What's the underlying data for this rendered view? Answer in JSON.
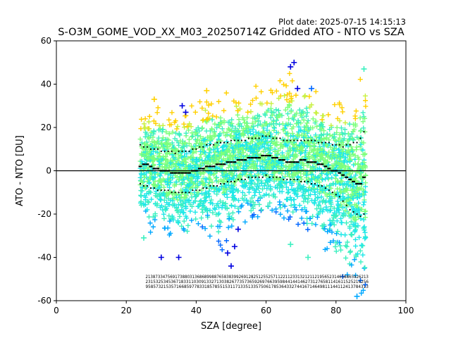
{
  "header": {
    "plot_date": "Plot date: 2025-07-15 14:15:13"
  },
  "chart_data": {
    "type": "scatter",
    "title": "S-O3M_GOME_VOD_XX_M03_20250714Z Gridded ATO - NTO vs SZA",
    "xlabel": "SZA [degree]",
    "ylabel": "ATO - NTO [DU]",
    "xlim": [
      0,
      100
    ],
    "ylim": [
      -60,
      60
    ],
    "xticks": [
      0,
      20,
      40,
      60,
      80,
      100
    ],
    "yticks": [
      -60,
      -40,
      -20,
      0,
      20,
      40,
      60
    ],
    "grid": false,
    "legend": "none",
    "reference_line": 0,
    "colormap": [
      "#0000e0",
      "#0066ff",
      "#00a8ff",
      "#1ee8e8",
      "#3cf0c0",
      "#7cff7c",
      "#c8f040",
      "#ffd000"
    ],
    "scatter_envelope": [
      {
        "sza": 24,
        "upper": 27,
        "lower": -28
      },
      {
        "sza": 30,
        "upper": 30,
        "lower": -32
      },
      {
        "sza": 36,
        "upper": 28,
        "lower": -38
      },
      {
        "sza": 42,
        "upper": 35,
        "lower": -28
      },
      {
        "sza": 48,
        "upper": 37,
        "lower": -38
      },
      {
        "sza": 54,
        "upper": 37,
        "lower": -25
      },
      {
        "sza": 60,
        "upper": 42,
        "lower": -22
      },
      {
        "sza": 66,
        "upper": 47,
        "lower": -25
      },
      {
        "sza": 72,
        "upper": 42,
        "lower": -30
      },
      {
        "sza": 78,
        "upper": 30,
        "lower": -38
      },
      {
        "sza": 84,
        "upper": 36,
        "lower": -55
      },
      {
        "sza": 88,
        "upper": 45,
        "lower": -58
      }
    ],
    "outliers": [
      {
        "sza": 36,
        "ato_nto": 30,
        "level": 0
      },
      {
        "sza": 37,
        "ato_nto": 27,
        "level": 0
      },
      {
        "sza": 30,
        "ato_nto": -40,
        "level": 0
      },
      {
        "sza": 35,
        "ato_nto": -40,
        "level": 0
      },
      {
        "sza": 49,
        "ato_nto": -38,
        "level": 0
      },
      {
        "sza": 50,
        "ato_nto": -44,
        "level": 0
      },
      {
        "sza": 51,
        "ato_nto": -35,
        "level": 0
      },
      {
        "sza": 52,
        "ato_nto": -27,
        "level": 0
      },
      {
        "sza": 67,
        "ato_nto": 48,
        "level": 0
      },
      {
        "sza": 68,
        "ato_nto": 50,
        "level": 0
      },
      {
        "sza": 69,
        "ato_nto": 38,
        "level": 0
      },
      {
        "sza": 73,
        "ato_nto": 38,
        "level": 1
      },
      {
        "sza": 88,
        "ato_nto": 47,
        "level": 4
      },
      {
        "sza": 67,
        "ato_nto": -34,
        "level": 4
      },
      {
        "sza": 72,
        "ato_nto": -40,
        "level": 4
      },
      {
        "sza": 25,
        "ato_nto": -31,
        "level": 4
      },
      {
        "sza": 43,
        "ato_nto": 37,
        "level": 7
      },
      {
        "sza": 28,
        "ato_nto": 33,
        "level": 7
      },
      {
        "sza": 86,
        "ato_nto": -58,
        "level": 2
      }
    ],
    "series": [
      {
        "x": [
          24,
          25,
          26,
          27,
          28,
          29,
          30,
          31,
          32,
          33,
          34,
          35,
          36,
          37,
          38,
          39,
          40,
          41,
          42,
          43,
          44,
          45,
          46,
          47,
          48,
          49,
          50,
          51,
          52,
          53,
          54,
          55,
          56,
          57,
          58,
          59,
          60,
          61,
          62,
          63,
          64,
          65,
          66,
          67,
          68,
          69,
          70,
          71,
          72,
          73,
          74,
          75,
          76,
          77,
          78,
          79,
          80,
          81,
          82,
          83,
          84,
          85,
          86,
          87,
          88
        ],
        "values": [
          2,
          3,
          3,
          2,
          1,
          1,
          0,
          0,
          0,
          -1,
          -1,
          -1,
          -1,
          -1,
          -1,
          0,
          0,
          1,
          1,
          2,
          2,
          2,
          3,
          3,
          3,
          4,
          4,
          4,
          5,
          5,
          5,
          6,
          6,
          6,
          6,
          7,
          7,
          7,
          6,
          6,
          5,
          5,
          4,
          4,
          4,
          4,
          5,
          5,
          4,
          4,
          4,
          3,
          3,
          2,
          1,
          0,
          0,
          -1,
          -2,
          -3,
          -4,
          -5,
          -6,
          -6,
          -3
        ]
      },
      {
        "x": [
          24,
          25,
          26,
          27,
          28,
          29,
          30,
          31,
          32,
          33,
          34,
          35,
          36,
          37,
          38,
          39,
          40,
          41,
          42,
          43,
          44,
          45,
          46,
          47,
          48,
          49,
          50,
          51,
          52,
          53,
          54,
          55,
          56,
          57,
          58,
          59,
          60,
          61,
          62,
          63,
          64,
          65,
          66,
          67,
          68,
          69,
          70,
          71,
          72,
          73,
          74,
          75,
          76,
          77,
          78,
          79,
          80,
          81,
          82,
          83,
          84,
          85,
          86,
          87,
          88
        ],
        "values": [
          12,
          11,
          11,
          10,
          10,
          10,
          9,
          9,
          9,
          9,
          8,
          9,
          9,
          9,
          9,
          10,
          10,
          11,
          11,
          12,
          12,
          12,
          13,
          13,
          13,
          13,
          14,
          14,
          14,
          14,
          14,
          15,
          15,
          15,
          15,
          16,
          16,
          16,
          15,
          15,
          15,
          14,
          14,
          14,
          14,
          14,
          14,
          14,
          14,
          14,
          14,
          13,
          13,
          13,
          13,
          12,
          12,
          12,
          11,
          12,
          12,
          13,
          13,
          15,
          18
        ]
      },
      {
        "x": [
          24,
          25,
          26,
          27,
          28,
          29,
          30,
          31,
          32,
          33,
          34,
          35,
          36,
          37,
          38,
          39,
          40,
          41,
          42,
          43,
          44,
          45,
          46,
          47,
          48,
          49,
          50,
          51,
          52,
          53,
          54,
          55,
          56,
          57,
          58,
          59,
          60,
          61,
          62,
          63,
          64,
          65,
          66,
          67,
          68,
          69,
          70,
          71,
          72,
          73,
          74,
          75,
          76,
          77,
          78,
          79,
          80,
          81,
          82,
          83,
          84,
          85,
          86,
          87,
          88
        ],
        "values": [
          -6,
          -7,
          -7,
          -8,
          -8,
          -9,
          -9,
          -9,
          -9,
          -10,
          -10,
          -10,
          -10,
          -10,
          -10,
          -9,
          -9,
          -9,
          -8,
          -8,
          -7,
          -7,
          -7,
          -6,
          -6,
          -5,
          -5,
          -5,
          -4,
          -4,
          -4,
          -3,
          -3,
          -3,
          -3,
          -3,
          -2,
          -3,
          -3,
          -3,
          -3,
          -4,
          -4,
          -4,
          -4,
          -4,
          -5,
          -5,
          -5,
          -6,
          -6,
          -7,
          -7,
          -8,
          -9,
          -10,
          -11,
          -12,
          -14,
          -16,
          -18,
          -19,
          -20,
          -21,
          -20
        ]
      }
    ],
    "count_labels": [
      "2138733475691738803136868998876583839926912825125525711221123313212112195652314658865926213",
      "2315325345367183311030913327130382677357365926976639598441441462731276581141611525214256",
      "958573215357166859778331857855153117133513357506178536433274416714649811144112413784313"
    ]
  }
}
